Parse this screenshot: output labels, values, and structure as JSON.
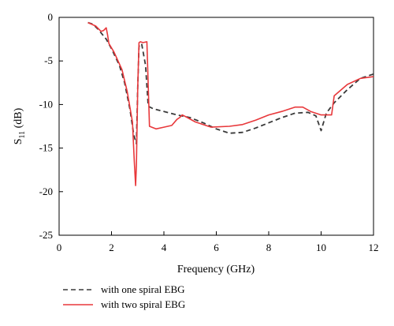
{
  "chart_data": {
    "type": "line",
    "xlabel": "Frequency (GHz)",
    "ylabel": {
      "main": "S",
      "sub": "11",
      "suffix": " (dB)"
    },
    "xlim": [
      0,
      12
    ],
    "ylim": [
      -25,
      0
    ],
    "xticks": [
      0,
      2,
      4,
      6,
      8,
      10,
      12
    ],
    "yticks": [
      0,
      -5,
      -10,
      -15,
      -20,
      -25
    ],
    "grid": false,
    "legend_position": "bottom-left, below plot",
    "series": [
      {
        "name": "with one spiral EBG",
        "color": "#3a3a3a",
        "style": "dashed",
        "points": [
          [
            1.1,
            -0.6
          ],
          [
            1.3,
            -0.8
          ],
          [
            1.5,
            -1.4
          ],
          [
            1.8,
            -2.5
          ],
          [
            2.0,
            -3.6
          ],
          [
            2.3,
            -5.5
          ],
          [
            2.5,
            -7.5
          ],
          [
            2.7,
            -10.5
          ],
          [
            2.85,
            -13.5
          ],
          [
            2.95,
            -14.5
          ],
          [
            3.0,
            -8.0
          ],
          [
            3.05,
            -3.3
          ],
          [
            3.15,
            -3.0
          ],
          [
            3.3,
            -5.5
          ],
          [
            3.4,
            -10.2
          ],
          [
            3.6,
            -10.5
          ],
          [
            4.0,
            -10.8
          ],
          [
            4.5,
            -11.2
          ],
          [
            5.0,
            -11.5
          ],
          [
            5.5,
            -12.1
          ],
          [
            6.0,
            -12.8
          ],
          [
            6.5,
            -13.3
          ],
          [
            7.0,
            -13.2
          ],
          [
            7.5,
            -12.7
          ],
          [
            8.0,
            -12.1
          ],
          [
            8.5,
            -11.5
          ],
          [
            9.0,
            -11.0
          ],
          [
            9.5,
            -10.9
          ],
          [
            9.8,
            -11.3
          ],
          [
            10.0,
            -13.0
          ],
          [
            10.2,
            -11.0
          ],
          [
            10.5,
            -9.8
          ],
          [
            11.0,
            -8.3
          ],
          [
            11.5,
            -7.0
          ],
          [
            12.0,
            -6.5
          ]
        ]
      },
      {
        "name": "with two spiral EBG",
        "color": "#e8383b",
        "style": "solid",
        "points": [
          [
            1.1,
            -0.6
          ],
          [
            1.4,
            -1.0
          ],
          [
            1.6,
            -1.6
          ],
          [
            1.7,
            -1.5
          ],
          [
            1.8,
            -1.2
          ],
          [
            1.85,
            -2.0
          ],
          [
            1.9,
            -3.0
          ],
          [
            2.1,
            -4.0
          ],
          [
            2.4,
            -6.0
          ],
          [
            2.6,
            -8.5
          ],
          [
            2.8,
            -12.0
          ],
          [
            2.87,
            -16.5
          ],
          [
            2.92,
            -19.3
          ],
          [
            2.95,
            -17.0
          ],
          [
            3.0,
            -8.0
          ],
          [
            3.05,
            -2.9
          ],
          [
            3.1,
            -2.8
          ],
          [
            3.2,
            -2.9
          ],
          [
            3.35,
            -2.8
          ],
          [
            3.45,
            -12.5
          ],
          [
            3.7,
            -12.8
          ],
          [
            4.0,
            -12.6
          ],
          [
            4.3,
            -12.4
          ],
          [
            4.5,
            -11.7
          ],
          [
            4.6,
            -11.5
          ],
          [
            4.7,
            -11.2
          ],
          [
            4.9,
            -11.5
          ],
          [
            5.2,
            -12.0
          ],
          [
            5.8,
            -12.6
          ],
          [
            6.5,
            -12.5
          ],
          [
            7.0,
            -12.3
          ],
          [
            7.5,
            -11.8
          ],
          [
            8.0,
            -11.2
          ],
          [
            8.5,
            -10.8
          ],
          [
            9.0,
            -10.3
          ],
          [
            9.3,
            -10.3
          ],
          [
            9.6,
            -10.8
          ],
          [
            10.0,
            -11.2
          ],
          [
            10.4,
            -11.2
          ],
          [
            10.5,
            -9.0
          ],
          [
            11.0,
            -7.7
          ],
          [
            11.5,
            -7.0
          ],
          [
            12.0,
            -6.8
          ]
        ]
      }
    ]
  }
}
